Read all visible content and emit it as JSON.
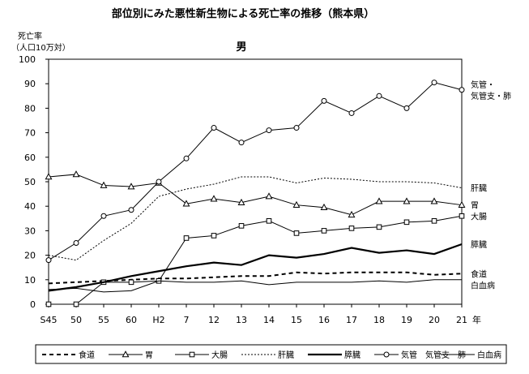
{
  "chart_data": {
    "type": "line",
    "title": "部位別にみた悪性新生物による死亡率の推移（熊本県）",
    "subtitle": "男",
    "ylabel_lines": [
      "死亡率",
      "（人口10万対）"
    ],
    "xlabel": "年",
    "ylim": [
      0,
      100
    ],
    "yticks": [
      0,
      10,
      20,
      30,
      40,
      50,
      60,
      70,
      80,
      90,
      100
    ],
    "categories": [
      "S45",
      "50",
      "55",
      "60",
      "H2",
      "7",
      "12",
      "13",
      "14",
      "15",
      "16",
      "17",
      "18",
      "19",
      "20",
      "21"
    ],
    "grid": false,
    "legend_position": "bottom",
    "series": [
      {
        "name": "食道",
        "color": "#000000",
        "style": "dashed",
        "marker": "none",
        "values": [
          8.5,
          9,
          9.5,
          10,
          10.5,
          10.5,
          11,
          11.5,
          11.5,
          13,
          12.5,
          13,
          13,
          13,
          12,
          12.5
        ]
      },
      {
        "name": "胃",
        "color": "#000000",
        "style": "solid",
        "marker": "triangle",
        "values": [
          52,
          53,
          48.5,
          48,
          49.5,
          41,
          43,
          41.5,
          44,
          40.5,
          39.5,
          36.5,
          42,
          42,
          42,
          40.5
        ]
      },
      {
        "name": "大腸",
        "color": "#000000",
        "style": "solid",
        "marker": "square",
        "values": [
          0,
          0,
          9,
          9,
          9.5,
          27,
          28,
          32,
          34,
          29,
          30,
          31,
          31.5,
          33.5,
          34,
          36
        ]
      },
      {
        "name": "肝臓",
        "color": "#000000",
        "style": "dotted",
        "marker": "none",
        "values": [
          20,
          18,
          26,
          33,
          44,
          47,
          49,
          52,
          52,
          49.5,
          51.5,
          51,
          50,
          50,
          49.5,
          47.5
        ]
      },
      {
        "name": "膵臓",
        "color": "#000000",
        "style": "thick",
        "marker": "none",
        "values": [
          5.5,
          7,
          9,
          11.5,
          13.5,
          15.5,
          17,
          16,
          20,
          19,
          20.5,
          23,
          21,
          22,
          20.5,
          24.5
        ]
      },
      {
        "name": "気管　気管支　肺",
        "label": [
          "気管・",
          "気管支・肺"
        ],
        "color": "#000000",
        "style": "solid",
        "marker": "circle",
        "values": [
          18,
          25,
          36,
          38.5,
          50,
          59.5,
          72,
          66,
          71,
          72,
          83,
          78,
          85,
          80,
          90.5,
          87.5
        ]
      },
      {
        "name": "白血病",
        "color": "#000000",
        "style": "solid",
        "marker": "none",
        "values": [
          6,
          6.5,
          5,
          5.5,
          9.5,
          9,
          9,
          9.5,
          8,
          9,
          9,
          9,
          9.5,
          9,
          10,
          10
        ]
      }
    ]
  }
}
